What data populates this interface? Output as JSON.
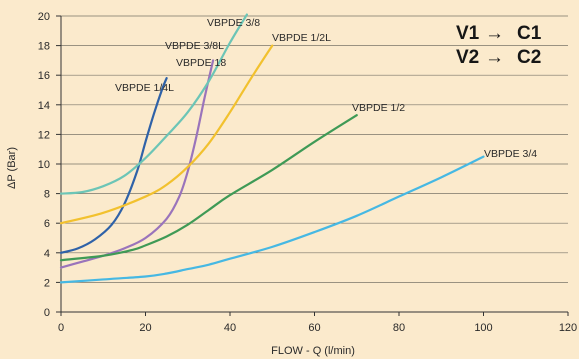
{
  "legend_box": {
    "line1_from": "V1",
    "line1_to": "C1",
    "line2_from": "V2",
    "line2_to": "C2",
    "arrow": "→"
  },
  "chart_data": {
    "type": "line",
    "xlabel": "FLOW - Q (l/min)",
    "ylabel": "ΔP (Bar)",
    "xlim": [
      0,
      120
    ],
    "ylim": [
      0,
      20
    ],
    "xticks": [
      0,
      20,
      40,
      60,
      80,
      100,
      120
    ],
    "yticks": [
      0,
      2,
      4,
      6,
      8,
      10,
      12,
      14,
      16,
      18,
      20
    ],
    "grid": "horizontal",
    "series": [
      {
        "name": "VBPDE 1/4L",
        "color": "#2f62a8",
        "x": [
          0,
          4,
          8,
          12,
          15,
          18,
          20,
          22,
          24,
          25
        ],
        "y": [
          4,
          4.3,
          4.9,
          5.9,
          7.3,
          9.5,
          11.5,
          13.4,
          15.1,
          15.8
        ]
      },
      {
        "name": "VBPDE 3/8L",
        "color": "#9a74bb",
        "x": [
          0,
          5,
          10,
          15,
          20,
          25,
          28,
          30,
          32,
          34,
          36
        ],
        "y": [
          3,
          3.4,
          3.8,
          4.3,
          5,
          6.3,
          7.8,
          9.5,
          11.8,
          14.5,
          17
        ]
      },
      {
        "name": "VBPDE 18",
        "color": "#9a74bb",
        "x": [],
        "y": []
      },
      {
        "name": "VBPDE 3/8",
        "color": "#6cc5b6",
        "x": [
          0,
          5,
          10,
          15,
          20,
          25,
          30,
          35,
          40,
          44
        ],
        "y": [
          8,
          8.1,
          8.5,
          9.2,
          10.4,
          11.9,
          13.5,
          15.6,
          18.2,
          20.1
        ]
      },
      {
        "name": "VBPDE 1/2L",
        "color": "#f2c12e",
        "x": [
          0,
          10,
          20,
          25,
          30,
          35,
          40,
          45,
          50
        ],
        "y": [
          6,
          6.7,
          7.8,
          8.6,
          9.8,
          11.4,
          13.5,
          15.8,
          18
        ]
      },
      {
        "name": "VBPDE 1/2",
        "color": "#3f9a56",
        "x": [
          0,
          10,
          17,
          20,
          25,
          30,
          35,
          40,
          50,
          60,
          70
        ],
        "y": [
          3.5,
          3.8,
          4.2,
          4.5,
          5.1,
          5.9,
          6.9,
          7.9,
          9.6,
          11.5,
          13.3
        ]
      },
      {
        "name": "VBPDE 3/4",
        "color": "#46b8e3",
        "x": [
          0,
          10,
          20,
          25,
          30,
          35,
          40,
          50,
          60,
          70,
          80,
          90,
          100
        ],
        "y": [
          2,
          2.2,
          2.4,
          2.6,
          2.9,
          3.2,
          3.6,
          4.4,
          5.4,
          6.5,
          7.8,
          9.1,
          10.5
        ]
      }
    ]
  }
}
